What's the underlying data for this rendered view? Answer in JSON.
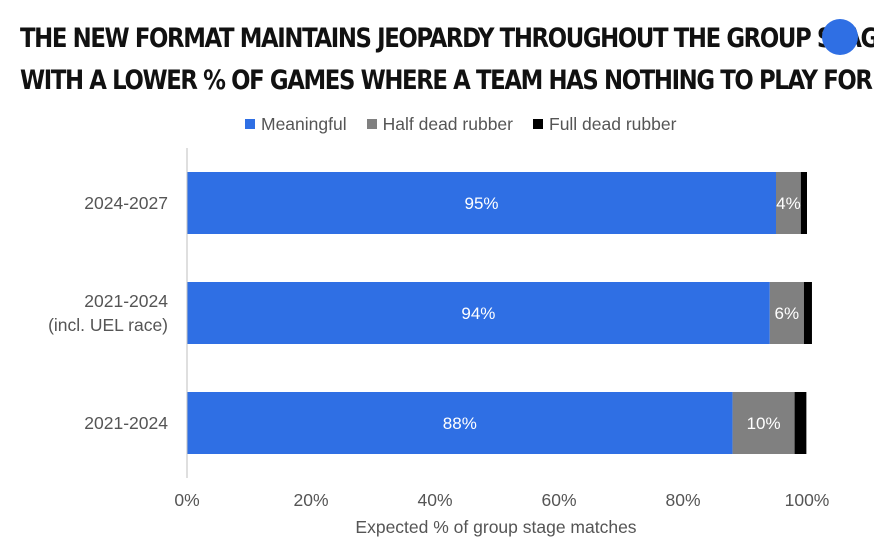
{
  "title_lines": [
    "THE NEW FORMAT MAINTAINS JEOPARDY THROUGHOUT THE GROUP STAGE,",
    "WITH A LOWER % OF GAMES WHERE A TEAM HAS NOTHING TO PLAY FOR"
  ],
  "brand_color": "#2f6fe4",
  "chart_data": {
    "type": "bar",
    "orientation": "horizontal",
    "stacked": true,
    "categories": [
      [
        "2024-2027"
      ],
      [
        "2021-2024",
        "(incl. UEL race)"
      ],
      [
        "2021-2024"
      ]
    ],
    "series": [
      {
        "name": "Meaningful",
        "color": "#2f6fe4",
        "values": [
          95,
          94,
          88
        ],
        "labels": [
          "95%",
          "94%",
          "88%"
        ]
      },
      {
        "name": "Half dead rubber",
        "color": "#808080",
        "values": [
          4,
          5.5,
          10
        ],
        "labels": [
          "4%",
          "6%",
          "10%"
        ]
      },
      {
        "name": "Full dead rubber",
        "color": "#000000",
        "values": [
          1,
          1.3,
          1.9
        ],
        "labels": [
          "",
          "",
          ""
        ]
      }
    ],
    "xlabel": "Expected % of group stage matches",
    "xlim": [
      0,
      100
    ],
    "xticks": [
      "0%",
      "20%",
      "40%",
      "60%",
      "80%",
      "100%"
    ],
    "legend_position": "top",
    "grid": false
  }
}
